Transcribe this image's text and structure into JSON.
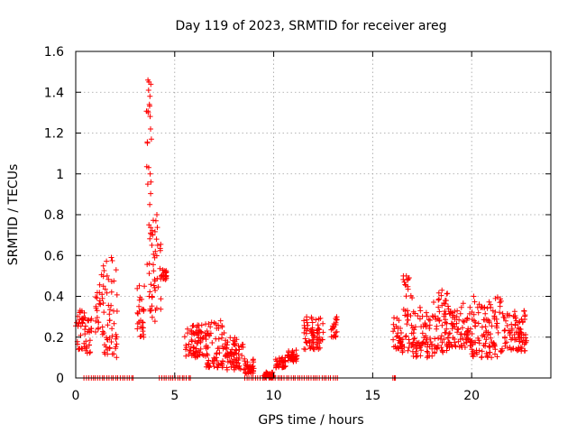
{
  "chart_data": {
    "type": "scatter",
    "title": "Day 119 of 2023, SRMTID for receiver areg",
    "xlabel": "GPS time / hours",
    "ylabel": "SRMTID / TECUs",
    "xlim": [
      0,
      24
    ],
    "ylim": [
      0,
      1.6
    ],
    "xticks": [
      0,
      5,
      10,
      15,
      20
    ],
    "xtick_labels": [
      "0",
      "5",
      "10",
      "15",
      "20"
    ],
    "yticks": [
      0,
      0.2,
      0.4,
      0.6,
      0.8,
      1.0,
      1.2,
      1.4,
      1.6
    ],
    "ytick_labels": [
      "0",
      "0.2",
      "0.4",
      "0.6",
      "0.8",
      "1",
      "1.2",
      "1.4",
      "1.6"
    ],
    "grid": true,
    "marker": "+",
    "color": "#ff0000",
    "segments": [
      {
        "x_start": 0.0,
        "x_end": 0.5,
        "y_min": 0.14,
        "y_max": 0.34
      },
      {
        "x_start": 0.5,
        "x_end": 0.8,
        "y_min": 0.12,
        "y_max": 0.3
      },
      {
        "x_start": 1.0,
        "x_end": 1.4,
        "y_min": 0.2,
        "y_max": 0.55
      },
      {
        "x_start": 1.4,
        "x_end": 2.1,
        "y_min": 0.1,
        "y_max": 0.58
      },
      {
        "x_start": 3.1,
        "x_end": 3.5,
        "y_min": 0.2,
        "y_max": 0.46
      },
      {
        "x_start": 3.55,
        "x_end": 3.8,
        "y_min": 0.3,
        "y_max": 1.46
      },
      {
        "x_start": 3.8,
        "x_end": 4.3,
        "y_min": 0.26,
        "y_max": 0.8
      },
      {
        "x_start": 4.3,
        "x_end": 4.6,
        "y_min": 0.48,
        "y_max": 0.53
      },
      {
        "x_start": 5.5,
        "x_end": 6.5,
        "y_min": 0.1,
        "y_max": 0.27
      },
      {
        "x_start": 6.5,
        "x_end": 7.5,
        "y_min": 0.05,
        "y_max": 0.29
      },
      {
        "x_start": 7.5,
        "x_end": 8.5,
        "y_min": 0.04,
        "y_max": 0.2
      },
      {
        "x_start": 8.5,
        "x_end": 9.0,
        "y_min": 0.02,
        "y_max": 0.1
      },
      {
        "x_start": 9.5,
        "x_end": 10.0,
        "y_min": 0.0,
        "y_max": 0.03
      },
      {
        "x_start": 10.1,
        "x_end": 10.6,
        "y_min": 0.05,
        "y_max": 0.1
      },
      {
        "x_start": 10.7,
        "x_end": 11.2,
        "y_min": 0.08,
        "y_max": 0.14
      },
      {
        "x_start": 11.5,
        "x_end": 12.5,
        "y_min": 0.14,
        "y_max": 0.3
      },
      {
        "x_start": 12.9,
        "x_end": 13.2,
        "y_min": 0.2,
        "y_max": 0.3
      },
      {
        "x_start": 16.0,
        "x_end": 16.5,
        "y_min": 0.14,
        "y_max": 0.3
      },
      {
        "x_start": 16.5,
        "x_end": 17.0,
        "y_min": 0.12,
        "y_max": 0.5
      },
      {
        "x_start": 17.0,
        "x_end": 18.0,
        "y_min": 0.1,
        "y_max": 0.35
      },
      {
        "x_start": 18.0,
        "x_end": 18.8,
        "y_min": 0.12,
        "y_max": 0.43
      },
      {
        "x_start": 18.8,
        "x_end": 20.0,
        "y_min": 0.15,
        "y_max": 0.37
      },
      {
        "x_start": 20.0,
        "x_end": 21.5,
        "y_min": 0.1,
        "y_max": 0.4
      },
      {
        "x_start": 21.5,
        "x_end": 22.8,
        "y_min": 0.13,
        "y_max": 0.33
      }
    ],
    "zero_value_spans": [
      [
        0.4,
        3.0
      ],
      [
        4.2,
        5.9
      ],
      [
        8.5,
        13.3
      ],
      [
        16.0,
        16.2
      ]
    ],
    "peak_points": [
      {
        "x": 3.65,
        "y": 1.46
      },
      {
        "x": 3.7,
        "y": 1.45
      },
      {
        "x": 3.68,
        "y": 1.41
      },
      {
        "x": 3.75,
        "y": 1.38
      },
      {
        "x": 3.72,
        "y": 1.34
      },
      {
        "x": 3.66,
        "y": 1.3
      },
      {
        "x": 3.78,
        "y": 1.22
      },
      {
        "x": 3.82,
        "y": 1.17
      },
      {
        "x": 3.62,
        "y": 1.15
      },
      {
        "x": 3.76,
        "y": 1.0
      },
      {
        "x": 3.8,
        "y": 0.96
      },
      {
        "x": 3.64,
        "y": 0.95
      },
      {
        "x": 3.74,
        "y": 0.85
      },
      {
        "x": 4.1,
        "y": 0.8
      },
      {
        "x": 4.05,
        "y": 0.77
      },
      {
        "x": 3.7,
        "y": 0.75
      },
      {
        "x": 3.78,
        "y": 0.71
      },
      {
        "x": 4.08,
        "y": 0.68
      },
      {
        "x": 3.85,
        "y": 0.65
      },
      {
        "x": 4.02,
        "y": 0.62
      },
      {
        "x": 3.72,
        "y": 0.56
      },
      {
        "x": 1.8,
        "y": 0.59
      },
      {
        "x": 16.7,
        "y": 0.5
      },
      {
        "x": 16.6,
        "y": 0.47
      },
      {
        "x": 18.5,
        "y": 0.43
      },
      {
        "x": 20.1,
        "y": 0.4
      }
    ]
  }
}
